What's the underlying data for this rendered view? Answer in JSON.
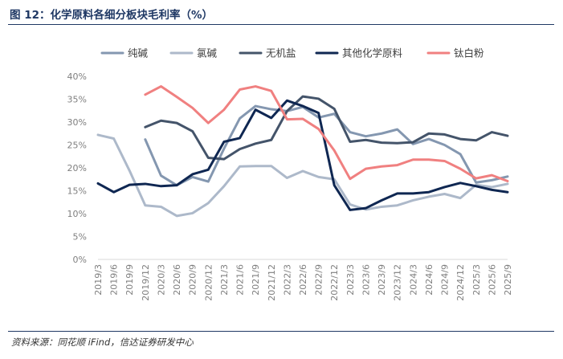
{
  "header": {
    "title": "图 12：化学原料各细分板块毛利率（%）"
  },
  "footer": {
    "source": "资料来源：同花顺 iFind，信达证券研发中心"
  },
  "chart_data": {
    "type": "line",
    "title": "",
    "xlabel": "",
    "ylabel": "",
    "ylim": [
      0,
      40
    ],
    "y_tick_labels": [
      "0%",
      "5%",
      "10%",
      "15%",
      "20%",
      "25%",
      "30%",
      "35%",
      "40%"
    ],
    "legend_position": "top",
    "grid": false,
    "x": [
      "2019/3",
      "2019/6",
      "2019/9",
      "2019/12",
      "2020/3",
      "2020/6",
      "2020/9",
      "2020/12",
      "2021/3",
      "2021/6",
      "2021/9",
      "2021/12",
      "2022/3",
      "2022/6",
      "2022/9",
      "2022/12",
      "2023/3",
      "2023/6",
      "2023/9",
      "2023/12",
      "2024/3",
      "2024/6",
      "2024/9",
      "2024/12",
      "2025/3",
      "2025/6",
      "2025/9"
    ],
    "series": [
      {
        "name": "纯碱",
        "color": "#8497b0",
        "values": [
          null,
          null,
          null,
          26.2,
          18.3,
          16.2,
          18.0,
          17.0,
          24.2,
          30.8,
          33.5,
          32.8,
          32.4,
          33.3,
          31.0,
          31.8,
          27.8,
          26.9,
          27.5,
          28.4,
          25.2,
          26.3,
          25.0,
          23.0,
          16.8,
          17.3,
          18.1
        ]
      },
      {
        "name": "氯碱",
        "color": "#adb9ca",
        "values": [
          27.2,
          26.4,
          19.4,
          11.8,
          11.5,
          9.5,
          10.1,
          12.3,
          16.0,
          20.3,
          20.4,
          20.4,
          17.8,
          19.3,
          18.0,
          17.5,
          12.0,
          10.9,
          11.5,
          11.8,
          12.9,
          13.7,
          14.3,
          13.4,
          16.3,
          15.8,
          16.5
        ]
      },
      {
        "name": "无机盐",
        "color": "#44546a",
        "values": [
          null,
          null,
          null,
          28.9,
          30.3,
          29.8,
          28.0,
          22.2,
          21.9,
          24.1,
          25.3,
          26.1,
          32.4,
          35.6,
          35.1,
          32.9,
          25.7,
          26.1,
          25.5,
          25.4,
          25.6,
          27.5,
          27.3,
          26.3,
          26.0,
          27.8,
          27.0
        ]
      },
      {
        "name": "其他化学原料",
        "color": "#0f2752",
        "values": [
          16.6,
          14.7,
          16.3,
          16.5,
          16.0,
          16.2,
          18.6,
          19.6,
          25.7,
          26.5,
          32.7,
          30.9,
          34.7,
          33.5,
          32.0,
          16.2,
          10.8,
          11.2,
          12.9,
          14.4,
          14.4,
          14.7,
          15.8,
          16.7,
          16.0,
          15.2,
          14.7
        ]
      },
      {
        "name": "钛白粉",
        "color": "#f08080",
        "values": [
          null,
          null,
          null,
          36.0,
          37.8,
          35.5,
          33.1,
          29.8,
          32.7,
          37.1,
          37.8,
          36.8,
          30.6,
          30.7,
          28.5,
          23.8,
          17.6,
          19.8,
          20.3,
          20.6,
          21.8,
          21.8,
          21.5,
          19.8,
          17.7,
          18.4,
          17.1
        ]
      }
    ]
  }
}
